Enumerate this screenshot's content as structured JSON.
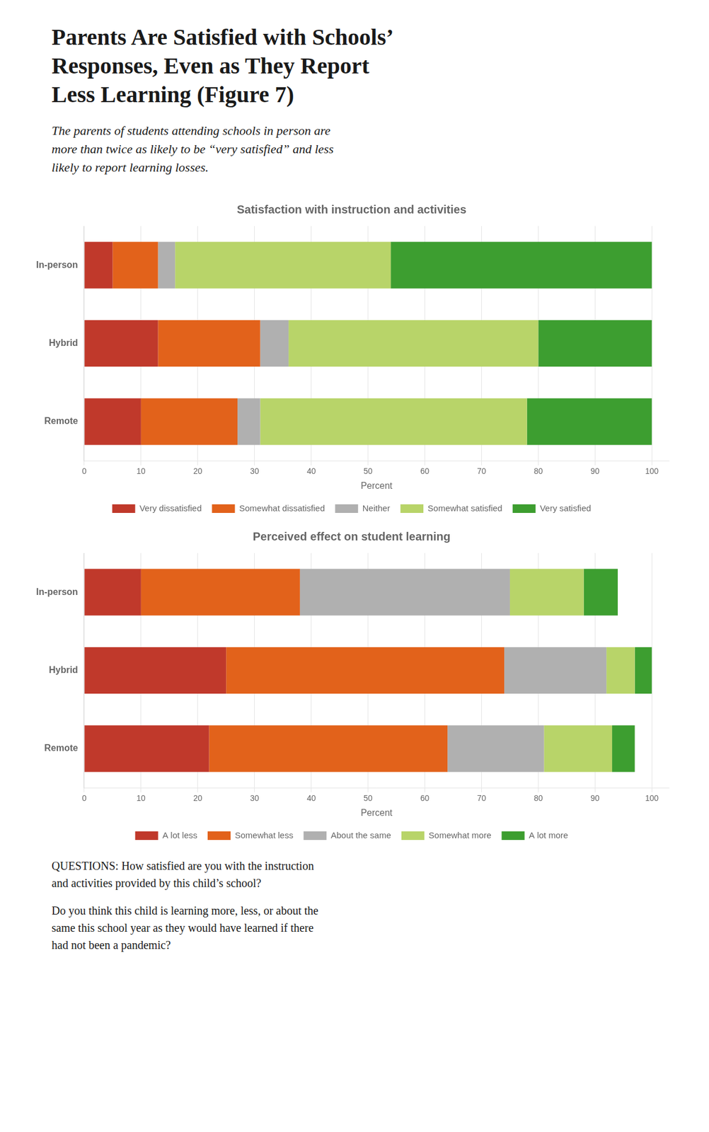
{
  "title": "Parents Are Satisfied with Schools’\nResponses, Even as They Report\nLess Learning (Figure 7)",
  "subtitle": "The parents of students attending schools in person are\nmore than twice as likely to be “very satisfied” and less\nlikely to report learning losses.",
  "annotations": [
    "QUESTIONS: How satisfied are you with the instruction\nand activities provided by this child’s school?",
    "Do you think this child is learning more, less, or about the\nsame this school year as they would have learned if there\nhad not been a pandemic?"
  ],
  "chart_data": [
    {
      "type": "bar",
      "orientation": "horizontal",
      "stacked": true,
      "title": "Satisfaction with instruction and activities",
      "categories": [
        "In-person",
        "Hybrid",
        "Remote"
      ],
      "series": [
        {
          "name": "Very dissatisfied",
          "color": "#c0392b",
          "values": [
            5,
            13,
            10
          ]
        },
        {
          "name": "Somewhat dissatisfied",
          "color": "#e2621b",
          "values": [
            8,
            18,
            17
          ]
        },
        {
          "name": "Neither",
          "color": "#b0b0b0",
          "values": [
            3,
            5,
            4
          ]
        },
        {
          "name": "Somewhat satisfied",
          "color": "#b8d469",
          "values": [
            38,
            44,
            47
          ]
        },
        {
          "name": "Very satisfied",
          "color": "#3d9e30",
          "values": [
            46,
            20,
            22
          ]
        }
      ],
      "xlabel": "Percent",
      "xlim": [
        0,
        103
      ],
      "xticks": [
        0,
        10,
        20,
        30,
        40,
        50,
        60,
        70,
        80,
        90,
        100
      ],
      "grid": true,
      "legend": "bottom"
    },
    {
      "type": "bar",
      "orientation": "horizontal",
      "stacked": true,
      "title": "Perceived effect on student learning",
      "categories": [
        "In-person",
        "Hybrid",
        "Remote"
      ],
      "series": [
        {
          "name": "A lot less",
          "color": "#c0392b",
          "values": [
            10,
            25,
            22
          ]
        },
        {
          "name": "Somewhat less",
          "color": "#e2621b",
          "values": [
            28,
            49,
            42
          ]
        },
        {
          "name": "About the same",
          "color": "#b0b0b0",
          "values": [
            37,
            18,
            17
          ]
        },
        {
          "name": "Somewhat more",
          "color": "#b8d469",
          "values": [
            13,
            5,
            12
          ]
        },
        {
          "name": "A lot more",
          "color": "#3d9e30",
          "values": [
            6,
            3,
            4
          ]
        }
      ],
      "xlabel": "Percent",
      "xlim": [
        0,
        103
      ],
      "xticks": [
        0,
        10,
        20,
        30,
        40,
        50,
        60,
        70,
        80,
        90,
        100
      ],
      "grid": true,
      "legend": "bottom"
    }
  ]
}
